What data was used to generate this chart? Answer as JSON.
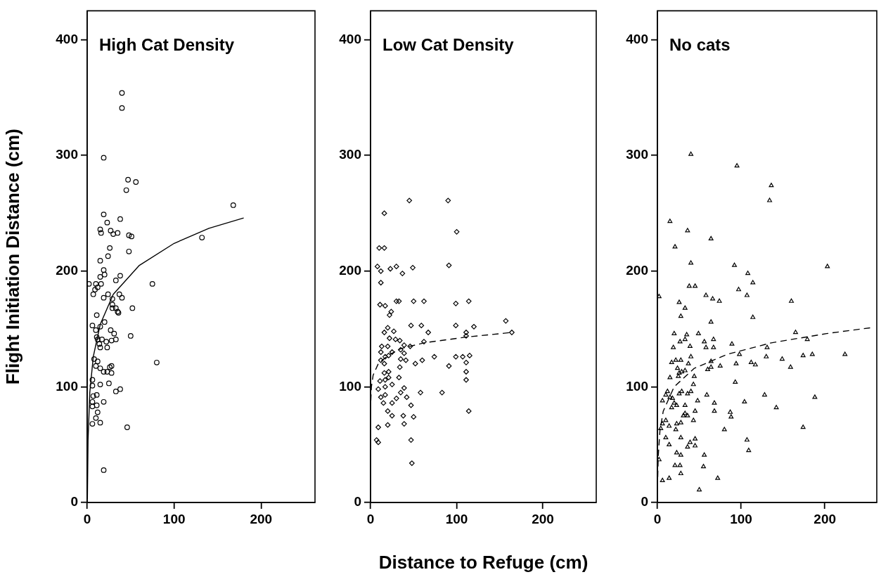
{
  "chart_data": [
    {
      "type": "scatter",
      "title": "High Cat Density",
      "ylabel": "Flight Initiation Distance (cm)",
      "xlim": [
        0,
        262
      ],
      "ylim": [
        0,
        425
      ],
      "xticks": [
        0,
        100,
        200
      ],
      "yticks": [
        0,
        100,
        200,
        300,
        400
      ],
      "grid": false,
      "legend": false,
      "series": [
        {
          "color": "#000000",
          "marker": "circle",
          "x": [
            40,
            40,
            19,
            47,
            56,
            45,
            168,
            19,
            23,
            38,
            15,
            16,
            27,
            30,
            35,
            48,
            51,
            26,
            24,
            48,
            15,
            132,
            19,
            20,
            15,
            38,
            33,
            2,
            10,
            16,
            12,
            9,
            75,
            7,
            19,
            24,
            29,
            37,
            40,
            29,
            29,
            33,
            35,
            36,
            52,
            11,
            20,
            6,
            10,
            15,
            27,
            31,
            11,
            12,
            17,
            14,
            22,
            28,
            33,
            50,
            15,
            23,
            8,
            12,
            10,
            15,
            19,
            23,
            26,
            28,
            28,
            80,
            6,
            6,
            15,
            25,
            33,
            38,
            7,
            11,
            19,
            6,
            6,
            11,
            12,
            10,
            6,
            15,
            46,
            19
          ],
          "values": [
            354,
            341,
            298,
            279,
            277,
            270,
            257,
            249,
            242,
            245,
            236,
            233,
            235,
            232,
            233,
            231,
            230,
            220,
            213,
            217,
            209,
            229,
            201,
            197,
            195,
            196,
            192,
            189,
            189,
            189,
            186,
            184,
            189,
            180,
            177,
            180,
            176,
            180,
            177,
            171,
            168,
            168,
            165,
            164,
            168,
            162,
            156,
            153,
            149,
            152,
            149,
            146,
            143,
            141,
            141,
            137,
            139,
            140,
            141,
            144,
            134,
            134,
            124,
            122,
            118,
            116,
            113,
            113,
            117,
            118,
            112,
            121,
            106,
            101,
            102,
            103,
            96,
            98,
            92,
            93,
            87,
            87,
            83,
            84,
            78,
            73,
            68,
            69,
            65,
            28
          ]
        },
        {
          "type": "line",
          "color": "#000000",
          "marker": "none",
          "line_style": "solid",
          "x": [
            0.25,
            1,
            3,
            7,
            15,
            30,
            60,
            100,
            140,
            180
          ],
          "values": [
            3,
            54,
            95,
            126,
            154,
            180,
            205,
            224,
            237,
            246
          ]
        }
      ]
    },
    {
      "type": "scatter",
      "title": "Low Cat Density",
      "xlabel": "Distance to Refuge (cm)",
      "xlim": [
        0,
        262
      ],
      "ylim": [
        0,
        425
      ],
      "xticks": [
        0,
        100,
        200
      ],
      "yticks": [
        0,
        100,
        200,
        300,
        400
      ],
      "grid": false,
      "legend": false,
      "series": [
        {
          "color": "#000000",
          "marker": "diamond",
          "x": [
            45,
            90,
            16,
            100,
            10,
            16,
            91,
            8,
            30,
            49,
            23,
            12,
            37,
            12,
            11,
            17,
            24,
            22,
            30,
            33,
            50,
            62,
            99,
            114,
            157,
            164,
            47,
            59,
            99,
            120,
            67,
            111,
            111,
            16,
            20,
            27,
            22,
            29,
            34,
            62,
            13,
            20,
            39,
            46,
            12,
            25,
            35,
            39,
            12,
            17,
            21,
            16,
            35,
            41,
            52,
            60,
            74,
            99,
            107,
            115,
            111,
            91,
            34,
            111,
            111,
            16,
            21,
            11,
            17,
            21,
            25,
            33,
            9,
            17,
            39,
            58,
            83,
            12,
            17,
            30,
            35,
            42,
            15,
            25,
            47,
            20,
            25,
            38,
            50,
            114,
            20,
            9,
            39,
            7,
            9,
            47,
            48
          ],
          "values": [
            261,
            261,
            250,
            234,
            220,
            220,
            205,
            204,
            204,
            203,
            202,
            200,
            198,
            190,
            171,
            170,
            165,
            162,
            174,
            174,
            174,
            174,
            172,
            174,
            157,
            147,
            153,
            153,
            153,
            152,
            147,
            147,
            144,
            147,
            151,
            148,
            142,
            141,
            140,
            139,
            135,
            135,
            136,
            135,
            130,
            130,
            132,
            129,
            123,
            126,
            127,
            120,
            124,
            123,
            120,
            123,
            126,
            126,
            126,
            127,
            121,
            118,
            117,
            113,
            106,
            112,
            113,
            105,
            106,
            108,
            102,
            108,
            98,
            100,
            99,
            95,
            95,
            91,
            93,
            90,
            95,
            91,
            86,
            86,
            84,
            79,
            75,
            75,
            74,
            79,
            67,
            65,
            68,
            54,
            52,
            54,
            34
          ]
        },
        {
          "type": "line",
          "color": "#000000",
          "marker": "none",
          "line_style": "dashed",
          "x": [
            0.3,
            1,
            3,
            9,
            20,
            35,
            62,
            111,
            164
          ],
          "values": [
            88,
            100,
            110,
            120,
            127,
            133,
            138,
            143,
            147
          ]
        }
      ]
    },
    {
      "type": "scatter",
      "title": "No cats",
      "xlim": [
        0,
        262
      ],
      "ylim": [
        0,
        425
      ],
      "xticks": [
        0,
        100,
        200
      ],
      "yticks": [
        0,
        100,
        200,
        300,
        400
      ],
      "grid": false,
      "legend": false,
      "series": [
        {
          "color": "#000000",
          "marker": "triangle",
          "x": [
            40,
            95,
            136,
            134,
            15,
            36,
            64,
            21,
            40,
            92,
            203,
            108,
            114,
            38,
            45,
            97,
            2,
            58,
            66,
            74,
            107,
            160,
            26,
            33,
            28,
            114,
            64,
            165,
            20,
            35,
            49,
            27,
            33,
            56,
            67,
            89,
            179,
            19,
            39,
            58,
            67,
            131,
            98,
            130,
            149,
            174,
            185,
            224,
            17,
            22,
            28,
            40,
            37,
            24,
            64,
            64,
            60,
            75,
            94,
            112,
            117,
            159,
            26,
            29,
            33,
            25,
            15,
            44,
            43,
            93,
            12,
            10,
            15,
            26,
            29,
            36,
            40,
            59,
            128,
            188,
            6,
            18,
            20,
            23,
            17,
            48,
            68,
            104,
            33,
            142,
            45,
            68,
            87,
            33,
            31,
            36,
            88,
            10,
            43,
            23,
            28,
            6,
            14,
            4,
            22,
            80,
            174,
            10,
            28,
            45,
            39,
            14,
            36,
            45,
            107,
            109,
            23,
            28,
            56,
            2,
            21,
            27,
            55,
            28,
            14,
            6,
            72,
            50
          ],
          "values": [
            301,
            291,
            274,
            261,
            243,
            235,
            228,
            221,
            207,
            205,
            204,
            198,
            190,
            187,
            187,
            184,
            178,
            179,
            176,
            174,
            179,
            174,
            173,
            168,
            161,
            160,
            156,
            147,
            146,
            145,
            146,
            139,
            141,
            139,
            141,
            137,
            141,
            134,
            135,
            134,
            134,
            134,
            128,
            126,
            124,
            127,
            128,
            128,
            121,
            123,
            123,
            126,
            120,
            116,
            122,
            117,
            115,
            118,
            120,
            121,
            119,
            117,
            112,
            113,
            114,
            109,
            108,
            109,
            102,
            104,
            96,
            93,
            91,
            94,
            96,
            94,
            96,
            93,
            93,
            91,
            88,
            90,
            86,
            84,
            82,
            88,
            86,
            87,
            84,
            82,
            79,
            79,
            78,
            77,
            75,
            75,
            74,
            71,
            71,
            68,
            69,
            68,
            66,
            64,
            63,
            63,
            65,
            56,
            56,
            55,
            52,
            50,
            48,
            49,
            54,
            45,
            43,
            41,
            41,
            37,
            32,
            32,
            31,
            25,
            21,
            19,
            21,
            11
          ]
        },
        {
          "type": "line",
          "color": "#000000",
          "marker": "none",
          "line_style": "dashed",
          "x": [
            0.4,
            1,
            3,
            7,
            20,
            44,
            83,
            136,
            202,
            254
          ],
          "values": [
            22,
            40,
            62,
            79,
            100,
            116,
            128,
            138,
            146,
            151
          ]
        }
      ]
    }
  ]
}
